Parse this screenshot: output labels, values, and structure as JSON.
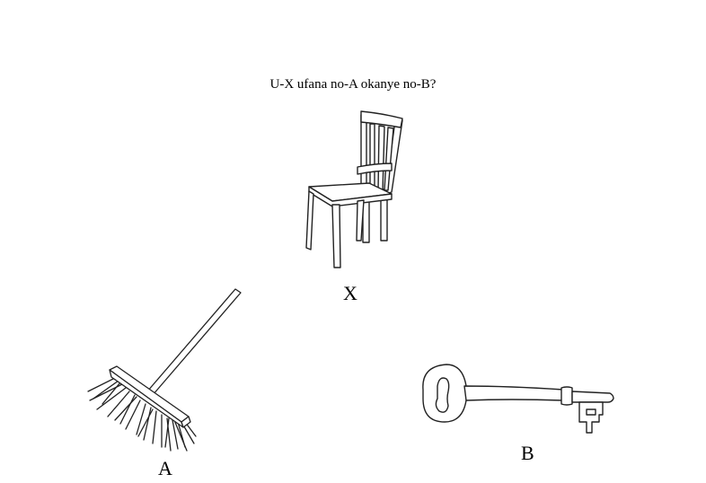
{
  "question": "U-X ufana no-A okanye no-B?",
  "labels": {
    "x": "X",
    "a": "A",
    "b": "B"
  },
  "icons": {
    "x": "chair-icon",
    "a": "broom-icon",
    "b": "key-icon"
  }
}
